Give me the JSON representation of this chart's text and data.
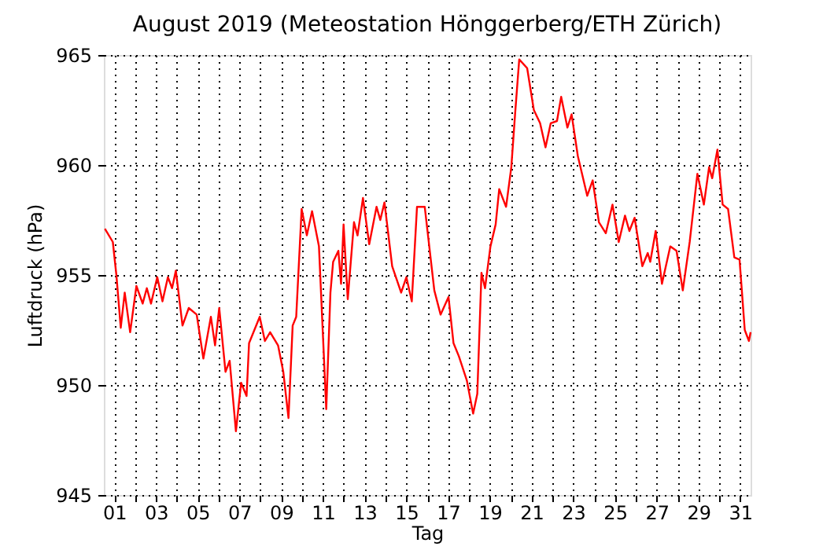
{
  "chart_data": {
    "type": "line",
    "title": "August 2019  (Meteostation Hönggerberg/ETH Zürich)",
    "xlabel": "Tag",
    "ylabel": "Luftdruck (hPa)",
    "xlim": [
      1,
      32
    ],
    "ylim": [
      945,
      965
    ],
    "yticks": [
      945,
      950,
      955,
      960,
      965
    ],
    "xticks": [
      {
        "value": 1.5,
        "label": "01"
      },
      {
        "value": 2.5,
        "label": null
      },
      {
        "value": 3.5,
        "label": "03"
      },
      {
        "value": 4.5,
        "label": null
      },
      {
        "value": 5.5,
        "label": "05"
      },
      {
        "value": 6.5,
        "label": null
      },
      {
        "value": 7.5,
        "label": "07"
      },
      {
        "value": 8.5,
        "label": null
      },
      {
        "value": 9.5,
        "label": "09"
      },
      {
        "value": 10.5,
        "label": null
      },
      {
        "value": 11.5,
        "label": "11"
      },
      {
        "value": 12.5,
        "label": null
      },
      {
        "value": 13.5,
        "label": "13"
      },
      {
        "value": 14.5,
        "label": null
      },
      {
        "value": 15.5,
        "label": "15"
      },
      {
        "value": 16.5,
        "label": null
      },
      {
        "value": 17.5,
        "label": "17"
      },
      {
        "value": 18.5,
        "label": null
      },
      {
        "value": 19.5,
        "label": "19"
      },
      {
        "value": 20.5,
        "label": null
      },
      {
        "value": 21.5,
        "label": "21"
      },
      {
        "value": 22.5,
        "label": null
      },
      {
        "value": 23.5,
        "label": "23"
      },
      {
        "value": 24.5,
        "label": null
      },
      {
        "value": 25.5,
        "label": "25"
      },
      {
        "value": 26.5,
        "label": null
      },
      {
        "value": 27.5,
        "label": "27"
      },
      {
        "value": 28.5,
        "label": null
      },
      {
        "value": 29.5,
        "label": "29"
      },
      {
        "value": 30.5,
        "label": null
      },
      {
        "value": 31.5,
        "label": "31"
      }
    ],
    "grid": true,
    "line_style": "solid",
    "marker": "none",
    "series": [
      {
        "color": "#ff0000",
        "x": [
          1.05,
          1.43,
          1.6,
          1.81,
          2.0,
          2.26,
          2.56,
          2.86,
          3.06,
          3.26,
          3.56,
          3.81,
          4.07,
          4.27,
          4.45,
          4.77,
          5.07,
          5.45,
          5.77,
          6.13,
          6.33,
          6.53,
          6.83,
          7.03,
          7.33,
          7.58,
          7.84,
          7.96,
          8.47,
          8.72,
          8.97,
          9.35,
          9.6,
          9.85,
          10.05,
          10.22,
          10.48,
          10.73,
          10.98,
          11.31,
          11.66,
          11.86,
          11.99,
          12.24,
          12.37,
          12.49,
          12.69,
          12.99,
          13.16,
          13.42,
          13.72,
          14.07,
          14.25,
          14.45,
          14.82,
          15.25,
          15.5,
          15.76,
          16.01,
          16.38,
          16.84,
          17.14,
          17.52,
          17.76,
          18.02,
          18.4,
          18.7,
          18.9,
          19.1,
          19.27,
          19.53,
          19.78,
          19.95,
          20.28,
          20.53,
          20.71,
          20.91,
          21.29,
          21.61,
          21.91,
          22.17,
          22.42,
          22.72,
          22.92,
          23.22,
          23.42,
          23.72,
          24.17,
          24.43,
          24.73,
          25.06,
          25.38,
          25.68,
          25.98,
          26.19,
          26.44,
          26.81,
          27.07,
          27.19,
          27.45,
          27.75,
          28.15,
          28.45,
          28.75,
          29.08,
          29.45,
          29.76,
          30.01,
          30.16,
          30.41,
          30.66,
          30.92,
          31.22,
          31.47,
          31.72,
          31.92,
          32.0
        ],
        "values": [
          957.1,
          956.5,
          955.0,
          952.6,
          954.2,
          952.4,
          954.5,
          953.7,
          954.4,
          953.7,
          954.9,
          953.8,
          954.9,
          954.4,
          955.2,
          952.7,
          953.5,
          953.2,
          951.2,
          953.1,
          951.8,
          953.5,
          950.6,
          951.1,
          947.9,
          950.1,
          949.5,
          951.9,
          953.1,
          952.0,
          952.4,
          951.8,
          950.6,
          948.5,
          952.7,
          953.1,
          958.0,
          956.8,
          957.9,
          956.3,
          948.9,
          954.2,
          955.6,
          956.1,
          954.6,
          957.3,
          953.9,
          957.4,
          956.8,
          958.5,
          956.4,
          958.1,
          957.5,
          958.3,
          955.4,
          954.2,
          954.9,
          953.8,
          958.1,
          958.1,
          954.3,
          953.2,
          954.0,
          951.9,
          951.3,
          950.2,
          948.7,
          949.6,
          955.1,
          954.4,
          956.3,
          957.3,
          958.9,
          958.1,
          959.9,
          962.3,
          964.8,
          964.4,
          962.5,
          961.9,
          960.8,
          961.9,
          962.0,
          963.1,
          961.7,
          962.3,
          960.4,
          958.6,
          959.3,
          957.4,
          956.9,
          958.2,
          956.5,
          957.7,
          957.0,
          957.6,
          955.4,
          956.0,
          955.6,
          957.0,
          954.6,
          956.3,
          956.1,
          954.3,
          956.5,
          959.6,
          958.2,
          959.9,
          959.4,
          960.7,
          958.2,
          958.0,
          955.8,
          955.7,
          952.5,
          952.0,
          952.4
        ]
      }
    ]
  }
}
